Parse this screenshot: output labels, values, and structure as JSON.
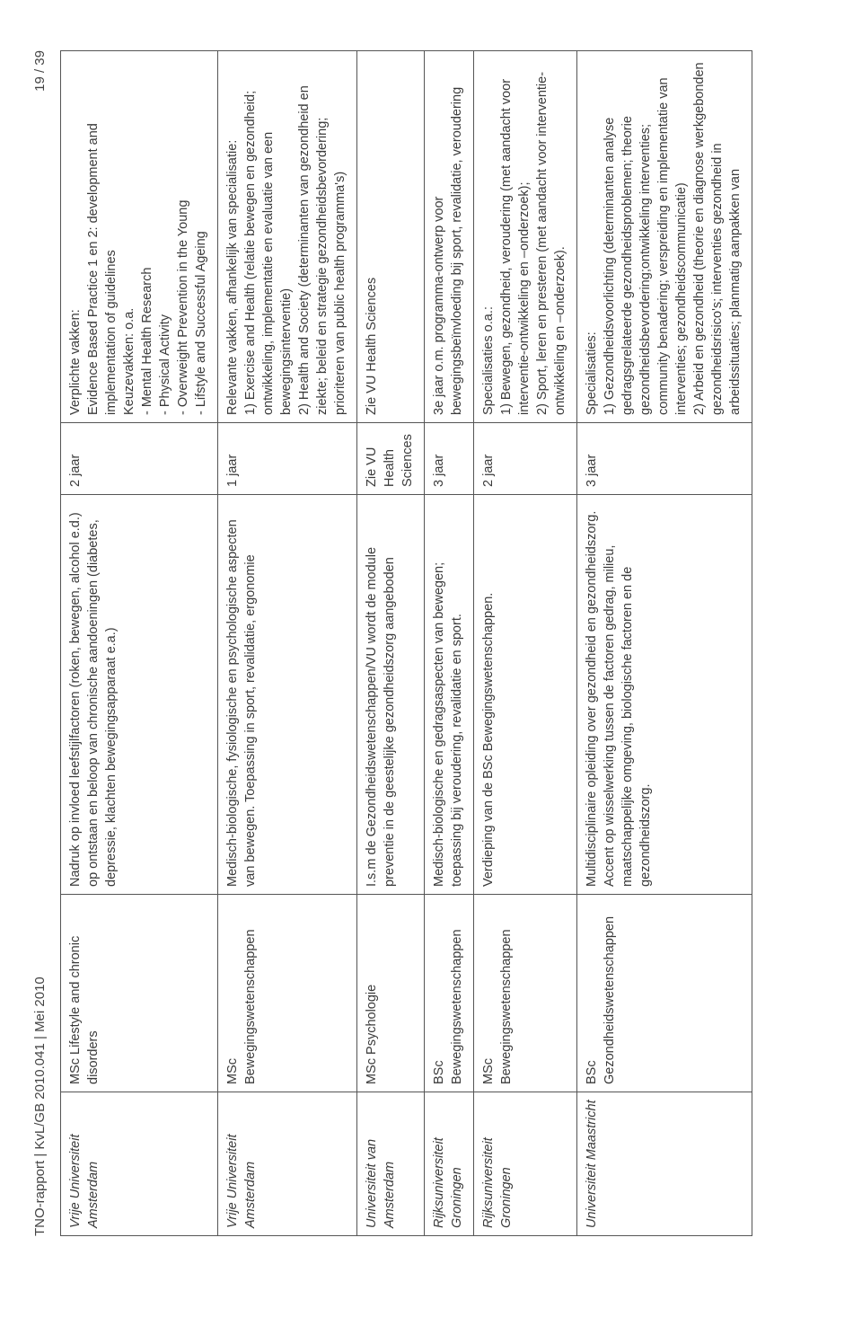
{
  "header": {
    "left": "TNO-rapport | KvL/GB 2010.041 | Mei 2010",
    "right": "19 / 39"
  },
  "rows": [
    {
      "inst": "Vrije Universiteit Amsterdam",
      "prog": "MSc Lifestyle and chronic disorders",
      "desc": "Nadruk op invloed leefstijlfactoren (roken, bewegen, alcohol e.d.) op ontstaan en beloop van chronische aandoeningen (diabetes, depressie, klachten bewegingsapparaat e.a.)",
      "dur": "2 jaar",
      "det": "Verplichte vakken:\nEvidence Based Practice 1 en 2: development and implementation of guidelines\nKeuzevakken: o.a.\n    - Mental Health Research\n    - Physical Activity\n    - Overweight Prevention in the Young\n    - Lifstyle and Successful Ageing"
    },
    {
      "inst": "Vrije Universiteit Amsterdam",
      "prog": "MSc Bewegingswetenschappen",
      "desc": "Medisch-biologische, fysiologische en psychologische aspecten van bewegen. Toepassing in sport, revalidatie, ergonomie",
      "dur": "1 jaar",
      "det": "Relevante vakken, afhankelijk van specialisatie:\n1) Exercise and Health (relatie bewegen en gezondheid; ontwikkeling, implementatie en evaluatie van een bewegingsinterventie)\n2) Health and Society (determinanten van gezondheid en ziekte; beleid en strategie gezondheidsbevordering; prioriteren van public health programma's)"
    },
    {
      "inst": "Universiteit van Amsterdam",
      "prog": "MSc Psychologie",
      "desc": "I.s.m de Gezondheidswetenschappen/VU wordt de module preventie in de geestelijke gezondheidszorg aangeboden",
      "dur": "Zie VU Health Sciences",
      "det": "Zie VU Health Sciences"
    },
    {
      "inst": "Rijksuniversiteit Groningen",
      "prog": "BSc Bewegingswetenschappen",
      "desc": "Medisch-biologische en gedragsaspecten van bewegen; toepassing bij veroudering, revalidatie en sport.",
      "dur": "3 jaar",
      "det": "3e jaar o.m. programma-ontwerp voor bewegingsbeïnvloeding bij sport, revalidatie, veroudering"
    },
    {
      "inst": "Rijksuniversiteit Groningen",
      "prog": "MSc Bewegingswetenschappen",
      "desc": "Verdieping van de BSc Bewegingswetenschappen.",
      "dur": "2 jaar",
      "det": "Specialisaties o.a.:\n1) Bewegen, gezondheid, veroudering (met aandacht voor interventie-ontwikkeling en –onderzoek);\n2) Sport, leren en presteren (met aandacht voor interventie-ontwikkeling en –onderzoek)."
    },
    {
      "inst": "Universiteit Maastricht",
      "prog": "BSc Gezondheidswetenschappen",
      "desc": "Multidisciplinaire opleiding over gezondheid en gezondheidszorg. Accent op wisselwerking tussen de factoren gedrag, milieu, maatschappelijke omgeving, biologische factoren en de gezondheidszorg.",
      "dur": "3 jaar",
      "det": "Specialisaties:\n1) Gezondheidsvoorlichting (determinanten analyse gedragsgrelateerde gezondheidsproblemen; theorie gezondheidsbevordering;ontwikkeling interventies; community benadering; verspreiding en implementatie van interventies; gezondheidscommunicatie)\n2) Arbeid en gezondheid  (theorie en diagnose werkgebonden gezondheidsrisico's; interventies gezondheid in arbeidssituaties; planmatig aanpakken van"
    }
  ]
}
